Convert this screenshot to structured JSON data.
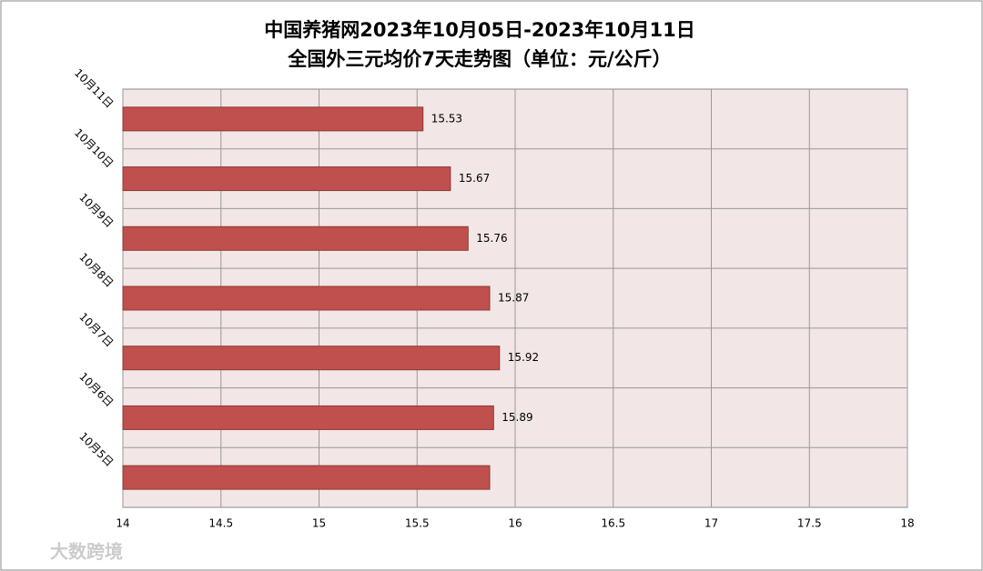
{
  "chart_data": {
    "type": "bar",
    "orientation": "horizontal",
    "title": [
      "中国养猪网2023年10月05日-2023年10月11日",
      "全国外三元均价7天走势图（单位：元/公斤）"
    ],
    "categories": [
      "10月11日",
      "10月10日",
      "10月9日",
      "10月8日",
      "10月7日",
      "10月6日",
      "10月5日"
    ],
    "values": [
      15.53,
      15.67,
      15.76,
      15.87,
      15.92,
      15.89,
      15.87
    ],
    "value_labels": [
      "15.53",
      "15.67",
      "15.76",
      "15.87",
      "15.92",
      "15.89",
      null
    ],
    "color": "#c0504d",
    "xlim": [
      14,
      18
    ],
    "xticks": [
      14,
      14.5,
      15,
      15.5,
      16,
      16.5,
      17,
      17.5,
      18
    ],
    "grid": true,
    "watermark": "大数跨境"
  }
}
